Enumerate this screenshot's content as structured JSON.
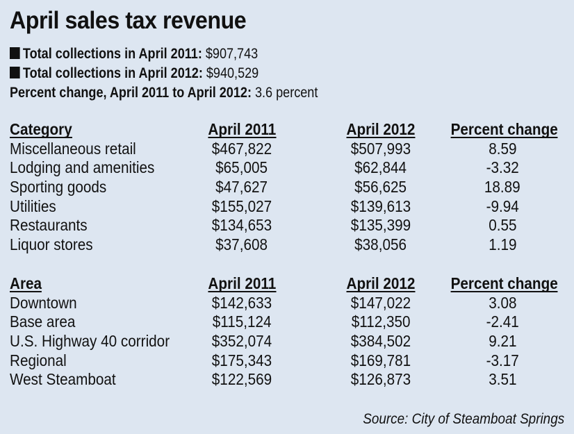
{
  "title": "April sales tax revenue",
  "summary": {
    "total_2011_label": "Total collections in April 2011:",
    "total_2011_value": "$907,743",
    "total_2012_label": "Total collections in April 2012:",
    "total_2012_value": "$940,529",
    "pct_label": "Percent change, April 2011 to April 2012:",
    "pct_value": "3.6 percent"
  },
  "source": "Source: City of Steamboat Springs",
  "chart_data": [
    {
      "type": "table",
      "columns": [
        "Category",
        "April 2011",
        "April 2012",
        "Percent change"
      ],
      "rows": [
        [
          "Miscellaneous retail",
          "$467,822",
          "$507,993",
          "8.59"
        ],
        [
          "Lodging and amenities",
          "$65,005",
          "$62,844",
          "-3.32"
        ],
        [
          "Sporting goods",
          "$47,627",
          "$56,625",
          "18.89"
        ],
        [
          "Utilities",
          "$155,027",
          "$139,613",
          "-9.94"
        ],
        [
          "Restaurants",
          "$134,653",
          "$135,399",
          "0.55"
        ],
        [
          "Liquor stores",
          "$37,608",
          "$38,056",
          "1.19"
        ]
      ]
    },
    {
      "type": "table",
      "columns": [
        "Area",
        "April 2011",
        "April 2012",
        "Percent change"
      ],
      "rows": [
        [
          "Downtown",
          "$142,633",
          "$147,022",
          "3.08"
        ],
        [
          "Base area",
          "$115,124",
          "$112,350",
          "-2.41"
        ],
        [
          "U.S. Highway 40 corridor",
          "$352,074",
          "$384,502",
          "9.21"
        ],
        [
          "Regional",
          "$175,343",
          "$169,781",
          "-3.17"
        ],
        [
          "West Steamboat",
          "$122,569",
          "$126,873",
          "3.51"
        ]
      ]
    }
  ]
}
